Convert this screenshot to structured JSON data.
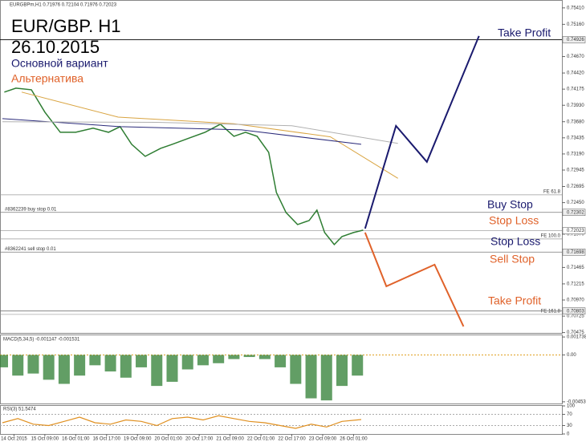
{
  "chart_data": {
    "type": "line",
    "header": "EURGBPm,H1 0.71976 0.72104 0.71976 0.72023",
    "title": "EUR/GBP. H1",
    "date": "26.10.2015",
    "main_label": "Основной вариант",
    "alt_label": "Альтернатива",
    "xlim": [
      0,
      290
    ],
    "ylim": [
      0.7047,
      0.7553
    ],
    "yticks": [
      {
        "value": 0.7541,
        "label": "0.75410"
      },
      {
        "value": 0.7516,
        "label": "0.75160"
      },
      {
        "value": 0.7467,
        "label": "0.74670"
      },
      {
        "value": 0.7442,
        "label": "0.74420"
      },
      0.74175,
      {
        "value": 0.7393,
        "label": "0.73930"
      },
      {
        "value": 0.7368,
        "label": "0.73680"
      },
      0.73435,
      {
        "value": 0.7319,
        "label": "0.73190"
      },
      0.72945,
      0.72695,
      {
        "value": 0.7245,
        "label": "0.72450"
      },
      {
        "value": 0.7197,
        "label": "0.71970"
      },
      0.71465,
      0.71215,
      {
        "value": 0.7097,
        "label": "0.70970"
      },
      0.70725,
      0.70475
    ],
    "xticks": [
      {
        "value": 6,
        "label": "14 Oct 2015"
      },
      {
        "value": 22,
        "label": "15 Oct 09:00"
      },
      {
        "value": 38,
        "label": "16 Oct 01:00"
      },
      {
        "value": 54,
        "label": "16 Oct 17:00"
      },
      {
        "value": 70,
        "label": "19 Oct 09:00"
      },
      {
        "value": 86,
        "label": "20 Oct 01:00"
      },
      {
        "value": 102,
        "label": "20 Oct 17:00"
      },
      {
        "value": 118,
        "label": "21 Oct 09:00"
      },
      {
        "value": 134,
        "label": "22 Oct 01:00"
      },
      {
        "value": 150,
        "label": "22 Oct 17:00"
      },
      {
        "value": 166,
        "label": "23 Oct 09:00"
      },
      {
        "value": 182,
        "label": "26 Oct 01:00"
      }
    ],
    "series": [
      {
        "color": "#2e7d32",
        "x": [
          1,
          7,
          15,
          22,
          30,
          38,
          47,
          55,
          61,
          67,
          74,
          82,
          88,
          97,
          105,
          113,
          120,
          126,
          132,
          138,
          142,
          147,
          153,
          159,
          163,
          167,
          172,
          176,
          182,
          187
        ],
        "values": [
          0.7413,
          0.7419,
          0.74166,
          0.73825,
          0.7352,
          0.7352,
          0.73581,
          0.7352,
          0.73605,
          0.73337,
          0.73154,
          0.73276,
          0.73337,
          0.73434,
          0.7352,
          0.73642,
          0.73459,
          0.7352,
          0.73459,
          0.73215,
          0.72605,
          0.723,
          0.72117,
          0.72178,
          0.72337,
          0.71995,
          0.71812,
          0.71934,
          0.71995,
          0.72032
        ]
      },
      {
        "color": "#d9a441",
        "x": [
          10,
          60,
          120,
          170,
          205
        ],
        "values": [
          0.7413,
          0.7375,
          0.7365,
          0.7345,
          0.7282
        ]
      },
      {
        "color": "#2a2a7a",
        "x": [
          0,
          61,
          124,
          186
        ],
        "values": [
          0.73727,
          0.73605,
          0.73556,
          0.73337
        ]
      },
      {
        "color": "#b0b0b0",
        "x": [
          0,
          80,
          150,
          205
        ],
        "values": [
          0.7368,
          0.7367,
          0.7362,
          0.7335
        ]
      }
    ],
    "levels": [
      {
        "value": 0.74926,
        "label": "0.74926"
      },
      {
        "value": 0.72302,
        "label": "0.72302"
      },
      {
        "value": 0.72023,
        "label": "0.72023"
      },
      {
        "value": 0.71698,
        "label": "0.71698"
      },
      {
        "value": 0.70803,
        "label": "0.70803"
      }
    ],
    "orders": [
      {
        "value": 0.72302,
        "label": "#8362239 buy stop 0.01"
      },
      {
        "value": 0.71698,
        "label": "#8362241 sell stop 0.01"
      }
    ],
    "fe_levels": [
      {
        "value": 0.72569,
        "label": "FE 61.8"
      },
      {
        "value": 0.71898,
        "label": "FE 100.0"
      },
      {
        "value": 0.70751,
        "label": "FE 161.8"
      }
    ],
    "scenarios": [
      {
        "color": "#1a1a6e",
        "x": [
          188,
          204,
          220,
          247
        ],
        "values": [
          0.72056,
          0.73617,
          0.73069,
          0.74983
        ]
      },
      {
        "color": "#e0622a",
        "x": [
          188,
          199,
          224,
          239
        ],
        "values": [
          0.71995,
          0.71178,
          0.71508,
          0.70569
        ]
      }
    ],
    "annotations": [
      {
        "text": "Take Profit",
        "color": "#1a1a6e"
      },
      {
        "text": "Buy Stop",
        "color": "#1a1a6e"
      },
      {
        "text": "Stop Loss",
        "color": "#e0622a"
      },
      {
        "text": "Stop Loss",
        "color": "#1a1a6e"
      },
      {
        "text": "Sell Stop",
        "color": "#e0622a"
      },
      {
        "text": "Take Profit",
        "color": "#e0622a"
      }
    ],
    "macd": {
      "label": "MACD(5,34,5) -0.001147 -0.001531",
      "color": "#2e7d32",
      "ylim": [
        -0.0047,
        0.0019
      ],
      "yticks": [
        0.001738,
        {
          "value": 0,
          "label": "0.00"
        },
        -0.004536
      ],
      "x": [
        0,
        8,
        16,
        24,
        32,
        40,
        48,
        56,
        64,
        72,
        80,
        88,
        96,
        104,
        112,
        120,
        128,
        136,
        144,
        152,
        160,
        168,
        176,
        184
      ],
      "values": [
        -0.0012,
        -0.002,
        -0.0018,
        -0.0024,
        -0.0028,
        -0.002,
        -0.001,
        -0.0016,
        -0.0022,
        -0.0012,
        -0.003,
        -0.0026,
        -0.0014,
        -0.001,
        -0.0008,
        -0.0004,
        -0.0002,
        -0.0004,
        -0.0012,
        -0.0028,
        -0.0042,
        -0.0044,
        -0.003,
        -0.002
      ]
    },
    "rsi": {
      "label": "RSI(3) 51.5474",
      "color": "#e09020",
      "ylim": [
        0,
        100
      ],
      "yticks": [
        100,
        70,
        30,
        0
      ],
      "x": [
        0,
        8,
        16,
        24,
        32,
        40,
        48,
        56,
        64,
        72,
        80,
        88,
        96,
        104,
        112,
        120,
        128,
        136,
        144,
        152,
        160,
        168,
        176,
        186
      ],
      "values": [
        40,
        55,
        35,
        30,
        45,
        60,
        40,
        35,
        50,
        45,
        30,
        55,
        60,
        50,
        65,
        55,
        45,
        40,
        30,
        20,
        35,
        25,
        45,
        51.5474
      ]
    }
  }
}
